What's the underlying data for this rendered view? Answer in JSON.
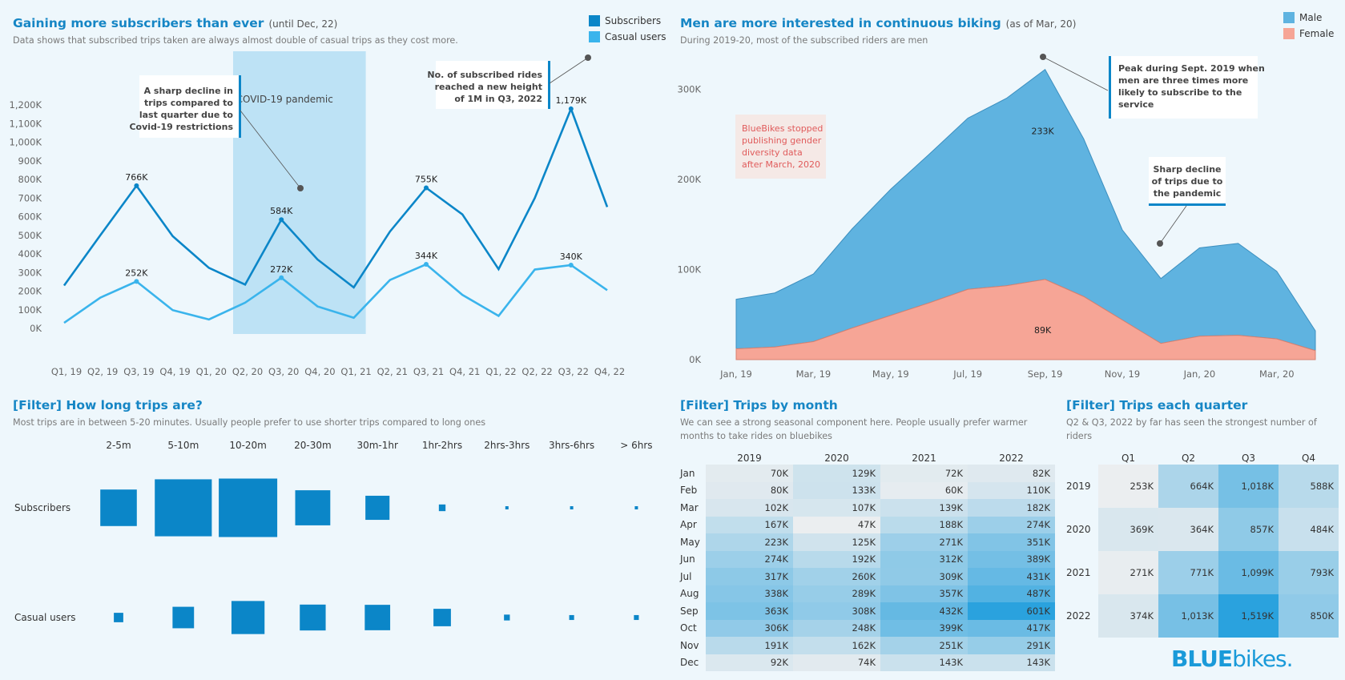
{
  "panel1": {
    "title": "Gaining more subscribers than ever",
    "title_note": "(until Dec, 22)",
    "subtitle": "Data shows that subscribed trips taken are always almost double of casual trips as they cost more.",
    "annotations": {
      "covid": "COVID-19 pandemic",
      "decline": [
        "A sharp decline in",
        "trips compared to",
        "last quarter due to",
        "Covid-19 restrictions"
      ],
      "record": [
        "No. of subscribed rides",
        "reached a new height",
        "of 1M in Q3, 2022"
      ]
    }
  },
  "panel2": {
    "title": "Men are more interested in continuous biking",
    "title_note": "(as of Mar, 20)",
    "subtitle": "During 2019-20, most of the subscribed riders are men",
    "annotations": {
      "stopped": [
        "BlueBikes stopped",
        "publishing gender",
        "diversity data",
        "after March, 2020"
      ],
      "peak": [
        "Peak during Sept. 2019 when",
        "men are three times more",
        "likely to subscribe to the",
        "service"
      ],
      "decline": [
        "Sharp decline",
        "of  trips due to",
        "the pandemic"
      ]
    }
  },
  "panel3": {
    "title": "[Filter] How long trips are?",
    "subtitle": "Most trips are in between 5-20 minutes. Usually people prefer to use shorter trips compared to long ones"
  },
  "panel4": {
    "title": "[Filter] Trips by month",
    "subtitle": [
      "We can see a strong seasonal component here. People usually prefer warmer",
      "months to take rides on bluebikes"
    ]
  },
  "panel5": {
    "title": "[Filter] Trips each quarter",
    "subtitle": [
      "Q2 & Q3, 2022 by far has seen the strongest number of",
      "riders"
    ]
  },
  "logo": {
    "main": "BLUE",
    "rest": "bikes."
  },
  "colors": {
    "subscribers": "#0b86c8",
    "casual": "#3ab4ec",
    "male": "#5fb3e0",
    "female": "#f6a596",
    "covid_band": "#bde2f5"
  },
  "chart_data": [
    {
      "id": "quarterly-trips",
      "type": "line",
      "categories": [
        "Q1, 19",
        "Q2, 19",
        "Q3, 19",
        "Q4, 19",
        "Q1, 20",
        "Q2, 20",
        "Q3, 20",
        "Q4, 20",
        "Q1, 21",
        "Q2, 21",
        "Q3, 21",
        "Q4, 21",
        "Q1, 22",
        "Q2, 22",
        "Q3, 22",
        "Q4, 22"
      ],
      "series": [
        {
          "name": "Subscribers",
          "values": [
            230,
            500,
            766,
            495,
            325,
            235,
            584,
            370,
            220,
            520,
            755,
            612,
            318,
            700,
            1179,
            652
          ]
        },
        {
          "name": "Casual users",
          "values": [
            30,
            165,
            252,
            98,
            48,
            138,
            272,
            118,
            57,
            260,
            344,
            180,
            67,
            316,
            340,
            205
          ]
        }
      ],
      "yticks": [
        0,
        100,
        200,
        300,
        400,
        500,
        600,
        700,
        800,
        900,
        1000,
        1100,
        1200
      ],
      "ytick_labels": [
        "0K",
        "100K",
        "200K",
        "300K",
        "400K",
        "500K",
        "600K",
        "700K",
        "800K",
        "900K",
        "1,000K",
        "1,100K",
        "1,200K"
      ],
      "ylim": [
        0,
        1250
      ],
      "data_labels": [
        {
          "series": 0,
          "index": 2,
          "text": "766K"
        },
        {
          "series": 0,
          "index": 6,
          "text": "584K"
        },
        {
          "series": 0,
          "index": 10,
          "text": "755K"
        },
        {
          "series": 0,
          "index": 14,
          "text": "1,179K"
        },
        {
          "series": 1,
          "index": 2,
          "text": "252K"
        },
        {
          "series": 1,
          "index": 6,
          "text": "272K"
        },
        {
          "series": 1,
          "index": 10,
          "text": "344K"
        },
        {
          "series": 1,
          "index": 14,
          "text": "340K"
        }
      ],
      "highlight_range": [
        "Q2, 20",
        "Q4, 20"
      ],
      "legend": "top-right"
    },
    {
      "id": "gender-trips",
      "type": "area",
      "x": [
        "Jan, 19",
        "Feb, 19",
        "Mar, 19",
        "Apr, 19",
        "May, 19",
        "Jun, 19",
        "Jul, 19",
        "Aug, 19",
        "Sep, 19",
        "Oct, 19",
        "Nov, 19",
        "Dec, 19",
        "Jan, 20",
        "Feb, 20",
        "Mar, 20",
        "Apr, 20"
      ],
      "xtick_labels": [
        "Jan, 19",
        "Mar, 19",
        "May, 19",
        "Jul, 19",
        "Sep, 19",
        "Nov, 19",
        "Jan, 20",
        "Mar, 20"
      ],
      "series": [
        {
          "name": "Male",
          "values": [
            55,
            60,
            75,
            110,
            140,
            165,
            190,
            208,
            233,
            175,
            100,
            72,
            98,
            102,
            75,
            22
          ]
        },
        {
          "name": "Female",
          "values": [
            12,
            14,
            20,
            35,
            49,
            63,
            78,
            82,
            89,
            70,
            44,
            18,
            26,
            27,
            23,
            10
          ]
        }
      ],
      "stacked": true,
      "yticks": [
        0,
        100,
        200,
        300
      ],
      "ytick_labels": [
        "0K",
        "100K",
        "200K",
        "300K"
      ],
      "ylim": [
        0,
        335
      ],
      "data_labels": [
        {
          "series": 0,
          "index": 8,
          "text": "233K"
        },
        {
          "series": 1,
          "index": 8,
          "text": "89K"
        }
      ],
      "legend": "top-right"
    },
    {
      "id": "trip-duration",
      "type": "heatmap",
      "columns": [
        "2-5m",
        "5-10m",
        "10-20m",
        "20-30m",
        "30m-1hr",
        "1hr-2hrs",
        "2hrs-3hrs",
        "3hrs-6hrs",
        "> 6hrs"
      ],
      "rows": [
        "Subscribers",
        "Casual users"
      ],
      "relative_size": [
        [
          0.39,
          0.95,
          1.0,
          0.36,
          0.17,
          0.013,
          0.003,
          0.002,
          0.003
        ],
        [
          0.026,
          0.135,
          0.32,
          0.196,
          0.189,
          0.089,
          0.01,
          0.007,
          0.007
        ]
      ]
    },
    {
      "id": "monthly-trips",
      "type": "table",
      "columns": [
        "2019",
        "2020",
        "2021",
        "2022"
      ],
      "rows": [
        "Jan",
        "Feb",
        "Mar",
        "Apr",
        "May",
        "Jun",
        "Jul",
        "Aug",
        "Sep",
        "Oct",
        "Nov",
        "Dec"
      ],
      "values": [
        [
          70,
          129,
          72,
          82
        ],
        [
          80,
          133,
          60,
          110
        ],
        [
          102,
          107,
          139,
          182
        ],
        [
          167,
          47,
          188,
          274
        ],
        [
          223,
          125,
          271,
          351
        ],
        [
          274,
          192,
          312,
          389
        ],
        [
          317,
          260,
          309,
          431
        ],
        [
          338,
          289,
          357,
          487
        ],
        [
          363,
          308,
          432,
          601
        ],
        [
          306,
          248,
          399,
          417
        ],
        [
          191,
          162,
          251,
          291
        ],
        [
          92,
          74,
          143,
          143
        ]
      ],
      "labels": [
        [
          "70K",
          "129K",
          "72K",
          "82K"
        ],
        [
          "80K",
          "133K",
          "60K",
          "110K"
        ],
        [
          "102K",
          "107K",
          "139K",
          "182K"
        ],
        [
          "167K",
          "47K",
          "188K",
          "274K"
        ],
        [
          "223K",
          "125K",
          "271K",
          "351K"
        ],
        [
          "274K",
          "192K",
          "312K",
          "389K"
        ],
        [
          "317K",
          "260K",
          "309K",
          "431K"
        ],
        [
          "338K",
          "289K",
          "357K",
          "487K"
        ],
        [
          "363K",
          "308K",
          "432K",
          "601K"
        ],
        [
          "306K",
          "248K",
          "399K",
          "417K"
        ],
        [
          "191K",
          "162K",
          "251K",
          "291K"
        ],
        [
          "92K",
          "74K",
          "143K",
          "143K"
        ]
      ]
    },
    {
      "id": "quarter-trips",
      "type": "table",
      "columns": [
        "Q1",
        "Q2",
        "Q3",
        "Q4"
      ],
      "rows": [
        "2019",
        "2020",
        "2021",
        "2022"
      ],
      "values": [
        [
          253,
          664,
          1018,
          588
        ],
        [
          369,
          364,
          857,
          484
        ],
        [
          271,
          771,
          1099,
          793
        ],
        [
          374,
          1013,
          1519,
          850
        ]
      ],
      "labels": [
        [
          "253K",
          "664K",
          "1,018K",
          "588K"
        ],
        [
          "369K",
          "364K",
          "857K",
          "484K"
        ],
        [
          "271K",
          "771K",
          "1,099K",
          "793K"
        ],
        [
          "374K",
          "1,013K",
          "1,519K",
          "850K"
        ]
      ]
    }
  ]
}
